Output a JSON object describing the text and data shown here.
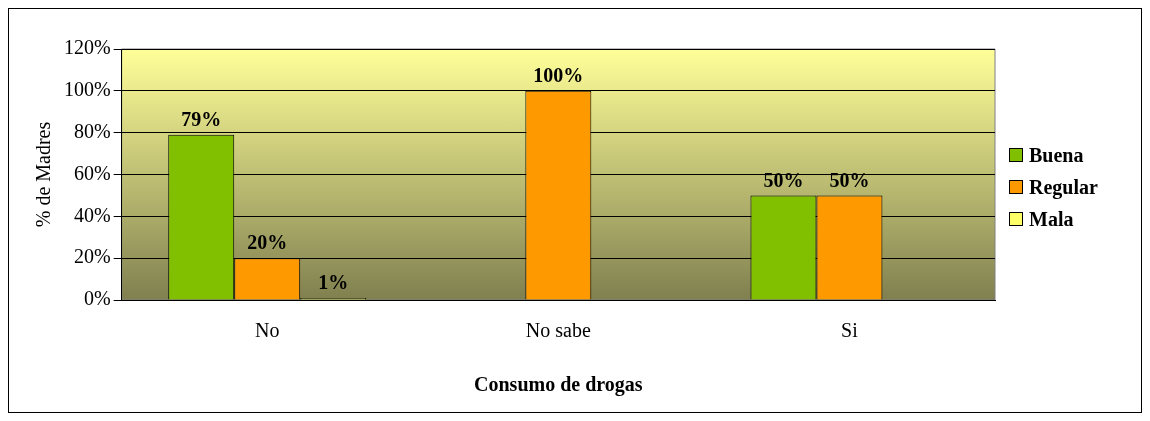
{
  "chart_data": {
    "type": "bar",
    "xlabel": "Consumo de drogas",
    "ylabel": "% de Madres",
    "categories": [
      "No",
      "No sabe",
      "Si"
    ],
    "series": [
      {
        "name": "Buena",
        "color": "#80c000",
        "values": [
          79,
          null,
          50
        ],
        "value_labels": [
          "79%",
          null,
          "50%"
        ]
      },
      {
        "name": "Regular",
        "color": "#ff9900",
        "values": [
          20,
          100,
          50
        ],
        "value_labels": [
          "20%",
          "100%",
          "50%"
        ]
      },
      {
        "name": "Mala",
        "color": "#ffff66",
        "values": [
          1,
          null,
          null
        ],
        "value_labels": [
          "1%",
          null,
          null
        ]
      }
    ],
    "ylim": [
      0,
      120
    ],
    "yticks": [
      {
        "value": 0,
        "label": "0%"
      },
      {
        "value": 20,
        "label": "20%"
      },
      {
        "value": 40,
        "label": "40%"
      },
      {
        "value": 60,
        "label": "60%"
      },
      {
        "value": 80,
        "label": "80%"
      },
      {
        "value": 100,
        "label": "100%"
      },
      {
        "value": 120,
        "label": "120%"
      }
    ],
    "grid": "y",
    "legend": "right"
  }
}
